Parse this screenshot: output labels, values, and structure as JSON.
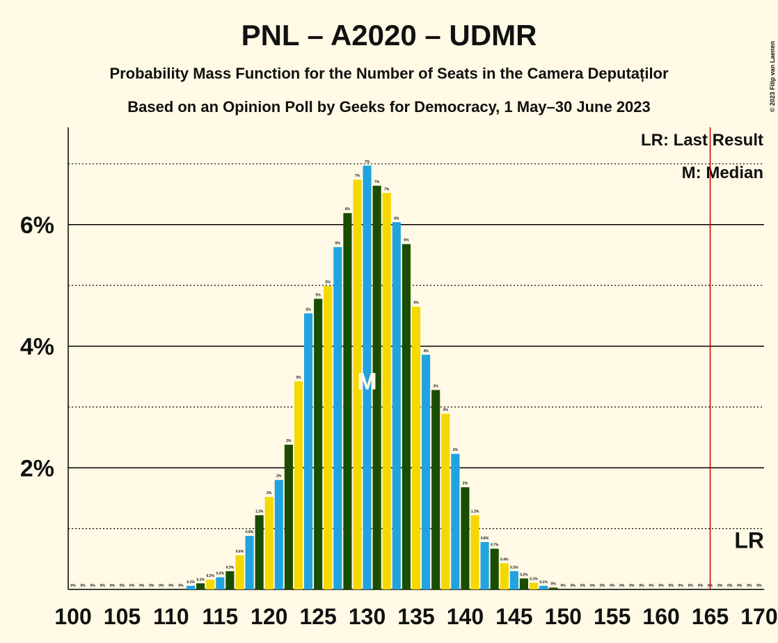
{
  "chart_data": {
    "type": "bar",
    "title": "PNL – A2020 – UDMR",
    "subtitle": "Probability Mass Function for the Number of Seats in the Camera Deputaților",
    "subtitle2": "Based on an Opinion Poll by Geeks for Democracy, 1 May–30 June 2023",
    "copyright": "© 2023 Filip van Laenen",
    "legend": [
      "LR: Last Result",
      "M: Median"
    ],
    "colors": [
      "#21a3e0",
      "#1b4d00",
      "#f5d800"
    ],
    "x": [
      100,
      101,
      102,
      103,
      104,
      105,
      106,
      107,
      108,
      109,
      110,
      111,
      112,
      113,
      114,
      115,
      116,
      117,
      118,
      119,
      120,
      121,
      122,
      123,
      124,
      125,
      126,
      127,
      128,
      129,
      130,
      131,
      132,
      133,
      134,
      135,
      136,
      137,
      138,
      139,
      140,
      141,
      142,
      143,
      144,
      145,
      146,
      147,
      148,
      149,
      150,
      151,
      152,
      153,
      154,
      155,
      156,
      157,
      158,
      159,
      160,
      161,
      162,
      163,
      164,
      165,
      166,
      167,
      168,
      169,
      170
    ],
    "values": [
      0,
      0,
      0,
      0,
      0,
      0,
      0,
      0,
      0,
      0,
      0,
      0,
      0.06,
      0.1,
      0.16,
      0.2,
      0.3,
      0.56,
      0.88,
      1.22,
      1.52,
      1.8,
      2.38,
      3.42,
      4.54,
      4.78,
      4.99,
      5.63,
      6.19,
      6.74,
      6.97,
      6.64,
      6.52,
      6.04,
      5.68,
      4.65,
      3.86,
      3.28,
      2.89,
      2.23,
      1.68,
      1.22,
      0.78,
      0.67,
      0.43,
      0.3,
      0.18,
      0.11,
      0.06,
      0.03,
      0,
      0,
      0,
      0,
      0,
      0,
      0,
      0,
      0,
      0,
      0,
      0,
      0,
      0,
      0,
      0,
      0,
      0,
      0,
      0,
      0
    ],
    "value_labels": [
      "0%",
      "0%",
      "0%",
      "0%",
      "0%",
      "0%",
      "0%",
      "0%",
      "0%",
      "0%",
      "0%",
      "0%",
      "0.1%",
      "0.1%",
      "0.2%",
      "0.2%",
      "0.3%",
      "0.6%",
      "0.9%",
      "1.2%",
      "2%",
      "2%",
      "2%",
      "3%",
      "5%",
      "5%",
      "5%",
      "6%",
      "6%",
      "7%",
      "7%",
      "7%",
      "7%",
      "6%",
      "6%",
      "5%",
      "4%",
      "3%",
      "3%",
      "2%",
      "2%",
      "1.2%",
      "0.8%",
      "0.7%",
      "0.4%",
      "0.3%",
      "0.2%",
      "0.1%",
      "0.1%",
      "0%",
      "0%",
      "0%",
      "0%",
      "0%",
      "0%",
      "0%",
      "0%",
      "0%",
      "0%",
      "0%",
      "0%",
      "0%",
      "0%",
      "0%",
      "0%",
      "0%",
      "0%",
      "0%",
      "0%",
      "0%",
      "0%"
    ],
    "median": 130,
    "median_label": "M",
    "last_result": 165,
    "last_result_label": "LR",
    "xlim": [
      99.5,
      170.5
    ],
    "xticks": [
      100,
      105,
      110,
      115,
      120,
      125,
      130,
      135,
      140,
      145,
      150,
      155,
      160,
      165,
      170
    ],
    "ylim": [
      0,
      7.6
    ],
    "yticks": [
      {
        "value": 2,
        "label": "2%"
      },
      {
        "value": 4,
        "label": "4%"
      },
      {
        "value": 6,
        "label": "6%"
      }
    ],
    "minor_grid": [
      1,
      3,
      5,
      7
    ]
  }
}
